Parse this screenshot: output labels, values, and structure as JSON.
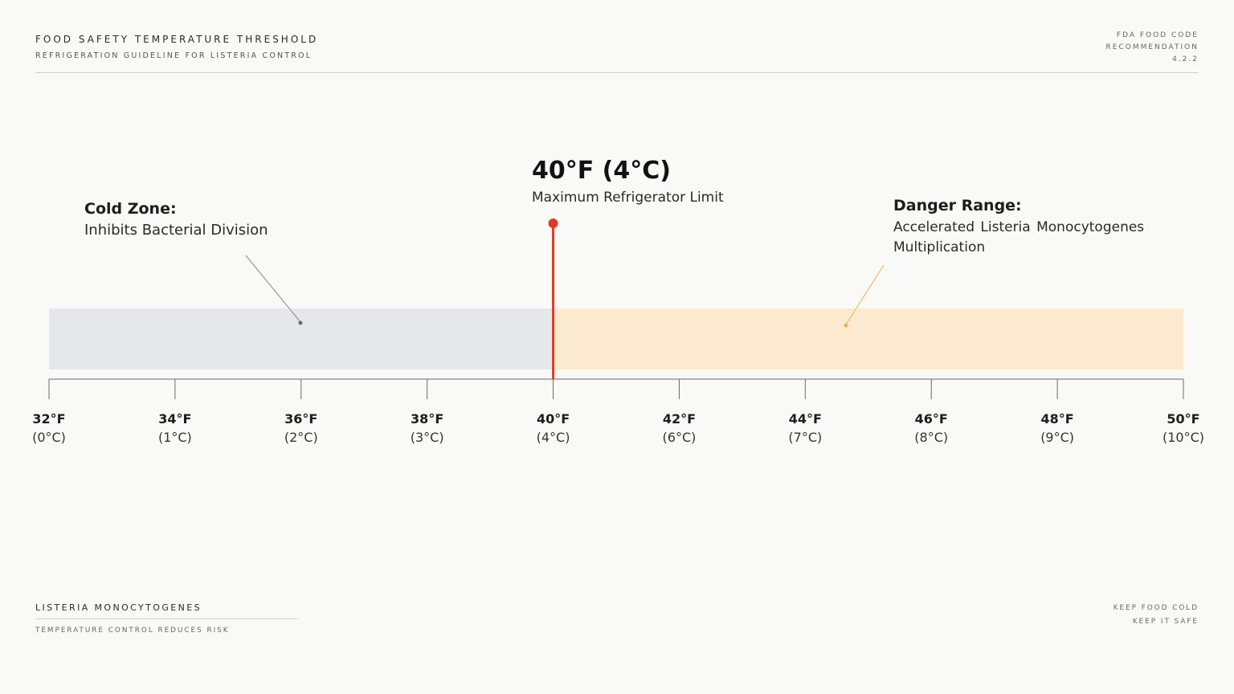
{
  "header": {
    "title": "FOOD SAFETY TEMPERATURE THRESHOLD",
    "subtitle": "REFRIGERATION GUIDELINE FOR LISTERIA CONTROL",
    "code_lines": [
      "FDA FOOD CODE",
      "RECOMMENDATION",
      "4.2.2"
    ]
  },
  "scale": {
    "min_f": 32,
    "max_f": 50,
    "threshold_f": 40,
    "ticks": [
      {
        "f": 32,
        "label_f": "32°F",
        "label_c": "(0°C)"
      },
      {
        "f": 34,
        "label_f": "34°F",
        "label_c": "(1°C)"
      },
      {
        "f": 36,
        "label_f": "36°F",
        "label_c": "(2°C)"
      },
      {
        "f": 38,
        "label_f": "38°F",
        "label_c": "(3°C)"
      },
      {
        "f": 40,
        "label_f": "40°F",
        "label_c": "(4°C)"
      },
      {
        "f": 42,
        "label_f": "42°F",
        "label_c": "(6°C)"
      },
      {
        "f": 44,
        "label_f": "44°F",
        "label_c": "(7°C)"
      },
      {
        "f": 46,
        "label_f": "46°F",
        "label_c": "(8°C)"
      },
      {
        "f": 48,
        "label_f": "48°F",
        "label_c": "(9°C)"
      },
      {
        "f": 50,
        "label_f": "50°F",
        "label_c": "(10°C)"
      }
    ]
  },
  "zones": {
    "cold": {
      "title": "Cold Zone:",
      "description": "Inhibits Bacterial Division",
      "color": "#e5e8ea",
      "pointer_color": "#8a8a8a"
    },
    "danger": {
      "title": "Danger Range:",
      "description": "Accelerated Listeria Monocytogenes Multiplication",
      "color": "#fbead0",
      "pointer_color": "#f0b24a"
    }
  },
  "threshold": {
    "temperature": "40°F (4°C)",
    "description": "Maximum Refrigerator Limit",
    "color": "#e03a22"
  },
  "footer": {
    "left_title": "LISTERIA MONOCYTOGENES",
    "left_subtitle": "TEMPERATURE CONTROL REDUCES RISK",
    "right_lines": [
      "KEEP FOOD COLD",
      "KEEP IT SAFE"
    ]
  }
}
